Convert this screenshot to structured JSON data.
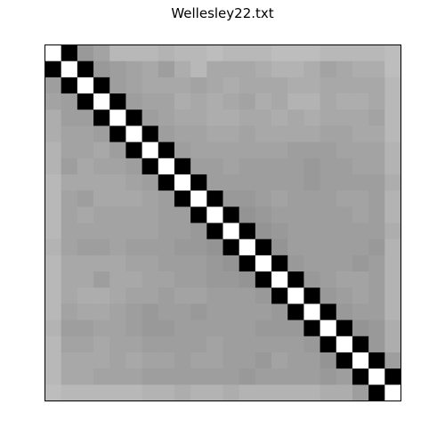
{
  "chart_data": {
    "type": "heatmap",
    "title": "Wellesley22.txt",
    "xlabel": "",
    "ylabel": "",
    "grid": false,
    "legend": "none",
    "colormap": "gray",
    "values": [
      [
        1.0,
        0.0,
        0.6,
        0.64,
        0.72,
        0.72,
        0.72,
        0.7,
        0.72,
        0.72,
        0.74,
        0.72,
        0.72,
        0.72,
        0.74,
        0.74,
        0.74,
        0.72,
        0.72,
        0.72,
        0.72,
        0.74
      ],
      [
        0.0,
        1.0,
        0.0,
        0.6,
        0.62,
        0.64,
        0.66,
        0.62,
        0.68,
        0.72,
        0.66,
        0.66,
        0.66,
        0.68,
        0.7,
        0.7,
        0.68,
        0.64,
        0.66,
        0.68,
        0.68,
        0.74
      ],
      [
        0.62,
        0.0,
        1.0,
        0.0,
        0.62,
        0.64,
        0.66,
        0.66,
        0.66,
        0.64,
        0.66,
        0.68,
        0.66,
        0.66,
        0.66,
        0.68,
        0.68,
        0.66,
        0.66,
        0.66,
        0.66,
        0.72
      ],
      [
        0.64,
        0.62,
        0.0,
        1.0,
        0.0,
        0.62,
        0.64,
        0.64,
        0.68,
        0.66,
        0.68,
        0.66,
        0.64,
        0.68,
        0.66,
        0.7,
        0.7,
        0.66,
        0.68,
        0.68,
        0.66,
        0.72
      ],
      [
        0.68,
        0.62,
        0.62,
        0.0,
        1.0,
        0.0,
        0.62,
        0.64,
        0.66,
        0.66,
        0.68,
        0.68,
        0.66,
        0.66,
        0.68,
        0.66,
        0.68,
        0.66,
        0.66,
        0.66,
        0.64,
        0.72
      ],
      [
        0.68,
        0.64,
        0.64,
        0.62,
        0.0,
        1.0,
        0.0,
        0.62,
        0.64,
        0.64,
        0.66,
        0.66,
        0.64,
        0.66,
        0.66,
        0.66,
        0.66,
        0.64,
        0.64,
        0.66,
        0.66,
        0.72
      ],
      [
        0.7,
        0.64,
        0.64,
        0.66,
        0.62,
        0.0,
        1.0,
        0.0,
        0.62,
        0.64,
        0.64,
        0.64,
        0.64,
        0.64,
        0.64,
        0.62,
        0.62,
        0.62,
        0.64,
        0.64,
        0.64,
        0.7
      ],
      [
        0.7,
        0.62,
        0.66,
        0.64,
        0.64,
        0.62,
        0.0,
        1.0,
        0.0,
        0.62,
        0.62,
        0.64,
        0.62,
        0.62,
        0.62,
        0.62,
        0.6,
        0.62,
        0.62,
        0.64,
        0.64,
        0.7
      ],
      [
        0.72,
        0.66,
        0.66,
        0.66,
        0.66,
        0.64,
        0.62,
        0.0,
        1.0,
        0.0,
        0.62,
        0.62,
        0.62,
        0.62,
        0.62,
        0.62,
        0.6,
        0.62,
        0.62,
        0.62,
        0.62,
        0.68
      ],
      [
        0.72,
        0.64,
        0.62,
        0.66,
        0.66,
        0.66,
        0.64,
        0.62,
        0.0,
        1.0,
        0.0,
        0.6,
        0.6,
        0.62,
        0.64,
        0.62,
        0.62,
        0.62,
        0.64,
        0.64,
        0.62,
        0.7
      ],
      [
        0.72,
        0.64,
        0.66,
        0.64,
        0.64,
        0.64,
        0.64,
        0.62,
        0.62,
        0.0,
        1.0,
        0.0,
        0.58,
        0.6,
        0.62,
        0.62,
        0.62,
        0.62,
        0.62,
        0.64,
        0.62,
        0.7
      ],
      [
        0.72,
        0.64,
        0.64,
        0.64,
        0.64,
        0.64,
        0.64,
        0.62,
        0.62,
        0.6,
        0.0,
        1.0,
        0.0,
        0.58,
        0.6,
        0.62,
        0.62,
        0.62,
        0.62,
        0.62,
        0.62,
        0.68
      ],
      [
        0.7,
        0.64,
        0.62,
        0.62,
        0.64,
        0.62,
        0.62,
        0.62,
        0.6,
        0.6,
        0.58,
        0.0,
        1.0,
        0.0,
        0.58,
        0.62,
        0.62,
        0.62,
        0.62,
        0.62,
        0.6,
        0.7
      ],
      [
        0.72,
        0.66,
        0.66,
        0.66,
        0.66,
        0.64,
        0.64,
        0.62,
        0.62,
        0.62,
        0.6,
        0.58,
        0.0,
        1.0,
        0.0,
        0.6,
        0.62,
        0.62,
        0.62,
        0.6,
        0.62,
        0.7
      ],
      [
        0.72,
        0.66,
        0.66,
        0.62,
        0.66,
        0.66,
        0.64,
        0.64,
        0.62,
        0.62,
        0.6,
        0.6,
        0.58,
        0.0,
        1.0,
        0.0,
        0.6,
        0.62,
        0.64,
        0.64,
        0.62,
        0.7
      ],
      [
        0.72,
        0.66,
        0.68,
        0.68,
        0.66,
        0.64,
        0.64,
        0.62,
        0.64,
        0.64,
        0.62,
        0.62,
        0.62,
        0.6,
        0.0,
        1.0,
        0.0,
        0.6,
        0.62,
        0.64,
        0.62,
        0.7
      ],
      [
        0.72,
        0.64,
        0.66,
        0.66,
        0.64,
        0.62,
        0.6,
        0.62,
        0.62,
        0.6,
        0.62,
        0.62,
        0.62,
        0.62,
        0.6,
        0.0,
        1.0,
        0.0,
        0.6,
        0.62,
        0.62,
        0.7
      ],
      [
        0.7,
        0.62,
        0.62,
        0.64,
        0.64,
        0.62,
        0.6,
        0.6,
        0.62,
        0.62,
        0.62,
        0.62,
        0.62,
        0.6,
        0.6,
        0.6,
        0.0,
        1.0,
        0.0,
        0.58,
        0.6,
        0.68
      ],
      [
        0.72,
        0.64,
        0.64,
        0.66,
        0.64,
        0.64,
        0.62,
        0.62,
        0.62,
        0.62,
        0.64,
        0.62,
        0.62,
        0.62,
        0.62,
        0.62,
        0.6,
        0.0,
        1.0,
        0.0,
        0.6,
        0.68
      ],
      [
        0.72,
        0.66,
        0.66,
        0.66,
        0.64,
        0.66,
        0.64,
        0.64,
        0.62,
        0.64,
        0.64,
        0.62,
        0.62,
        0.6,
        0.64,
        0.62,
        0.62,
        0.58,
        0.0,
        1.0,
        0.0,
        0.62
      ],
      [
        0.72,
        0.66,
        0.66,
        0.64,
        0.64,
        0.64,
        0.62,
        0.62,
        0.62,
        0.62,
        0.62,
        0.62,
        0.6,
        0.62,
        0.62,
        0.62,
        0.62,
        0.6,
        0.62,
        0.0,
        1.0,
        0.0
      ],
      [
        0.74,
        0.72,
        0.72,
        0.72,
        0.72,
        0.72,
        0.7,
        0.7,
        0.68,
        0.7,
        0.7,
        0.68,
        0.7,
        0.7,
        0.7,
        0.7,
        0.7,
        0.68,
        0.68,
        0.62,
        0.0,
        1.0
      ]
    ]
  }
}
